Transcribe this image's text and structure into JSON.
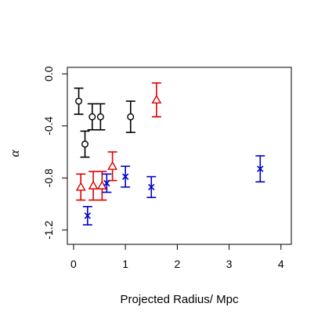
{
  "chart_data": {
    "type": "scatter",
    "xlabel": "Projected Radius/ Mpc",
    "ylabel": "α",
    "xlim": [
      -0.12,
      4.2
    ],
    "ylim": [
      -1.31,
      0.05
    ],
    "x_ticks": [
      "0",
      "1",
      "2",
      "3",
      "4"
    ],
    "x_tick_values": [
      0,
      1,
      2,
      3,
      4
    ],
    "y_ticks": [
      "0.0",
      "-0.4",
      "-0.8",
      "-1.2"
    ],
    "y_tick_values": [
      0.0,
      -0.4,
      -0.8,
      -1.2
    ],
    "grid": false,
    "series": [
      {
        "color": "#000000",
        "marker": "circle",
        "points": [
          {
            "x": 0.1,
            "y": -0.21,
            "err": 0.1
          },
          {
            "x": 0.22,
            "y": -0.54,
            "err": 0.1
          },
          {
            "x": 0.36,
            "y": -0.33,
            "err": 0.1
          },
          {
            "x": 0.52,
            "y": -0.33,
            "err": 0.1
          },
          {
            "x": 1.1,
            "y": -0.33,
            "err": 0.12
          }
        ]
      },
      {
        "color": "#dd0000",
        "marker": "triangle",
        "points": [
          {
            "x": 0.14,
            "y": -0.87,
            "err": 0.1
          },
          {
            "x": 0.38,
            "y": -0.86,
            "err": 0.11
          },
          {
            "x": 0.55,
            "y": -0.86,
            "err": 0.11
          },
          {
            "x": 0.75,
            "y": -0.71,
            "err": 0.11
          },
          {
            "x": 1.6,
            "y": -0.2,
            "err": 0.13
          }
        ]
      },
      {
        "color": "#0000cc",
        "marker": "x",
        "points": [
          {
            "x": 0.27,
            "y": -1.09,
            "err": 0.07
          },
          {
            "x": 0.64,
            "y": -0.84,
            "err": 0.07
          },
          {
            "x": 1.0,
            "y": -0.79,
            "err": 0.08
          },
          {
            "x": 1.5,
            "y": -0.87,
            "err": 0.08
          },
          {
            "x": 3.6,
            "y": -0.73,
            "err": 0.1
          }
        ]
      }
    ]
  }
}
